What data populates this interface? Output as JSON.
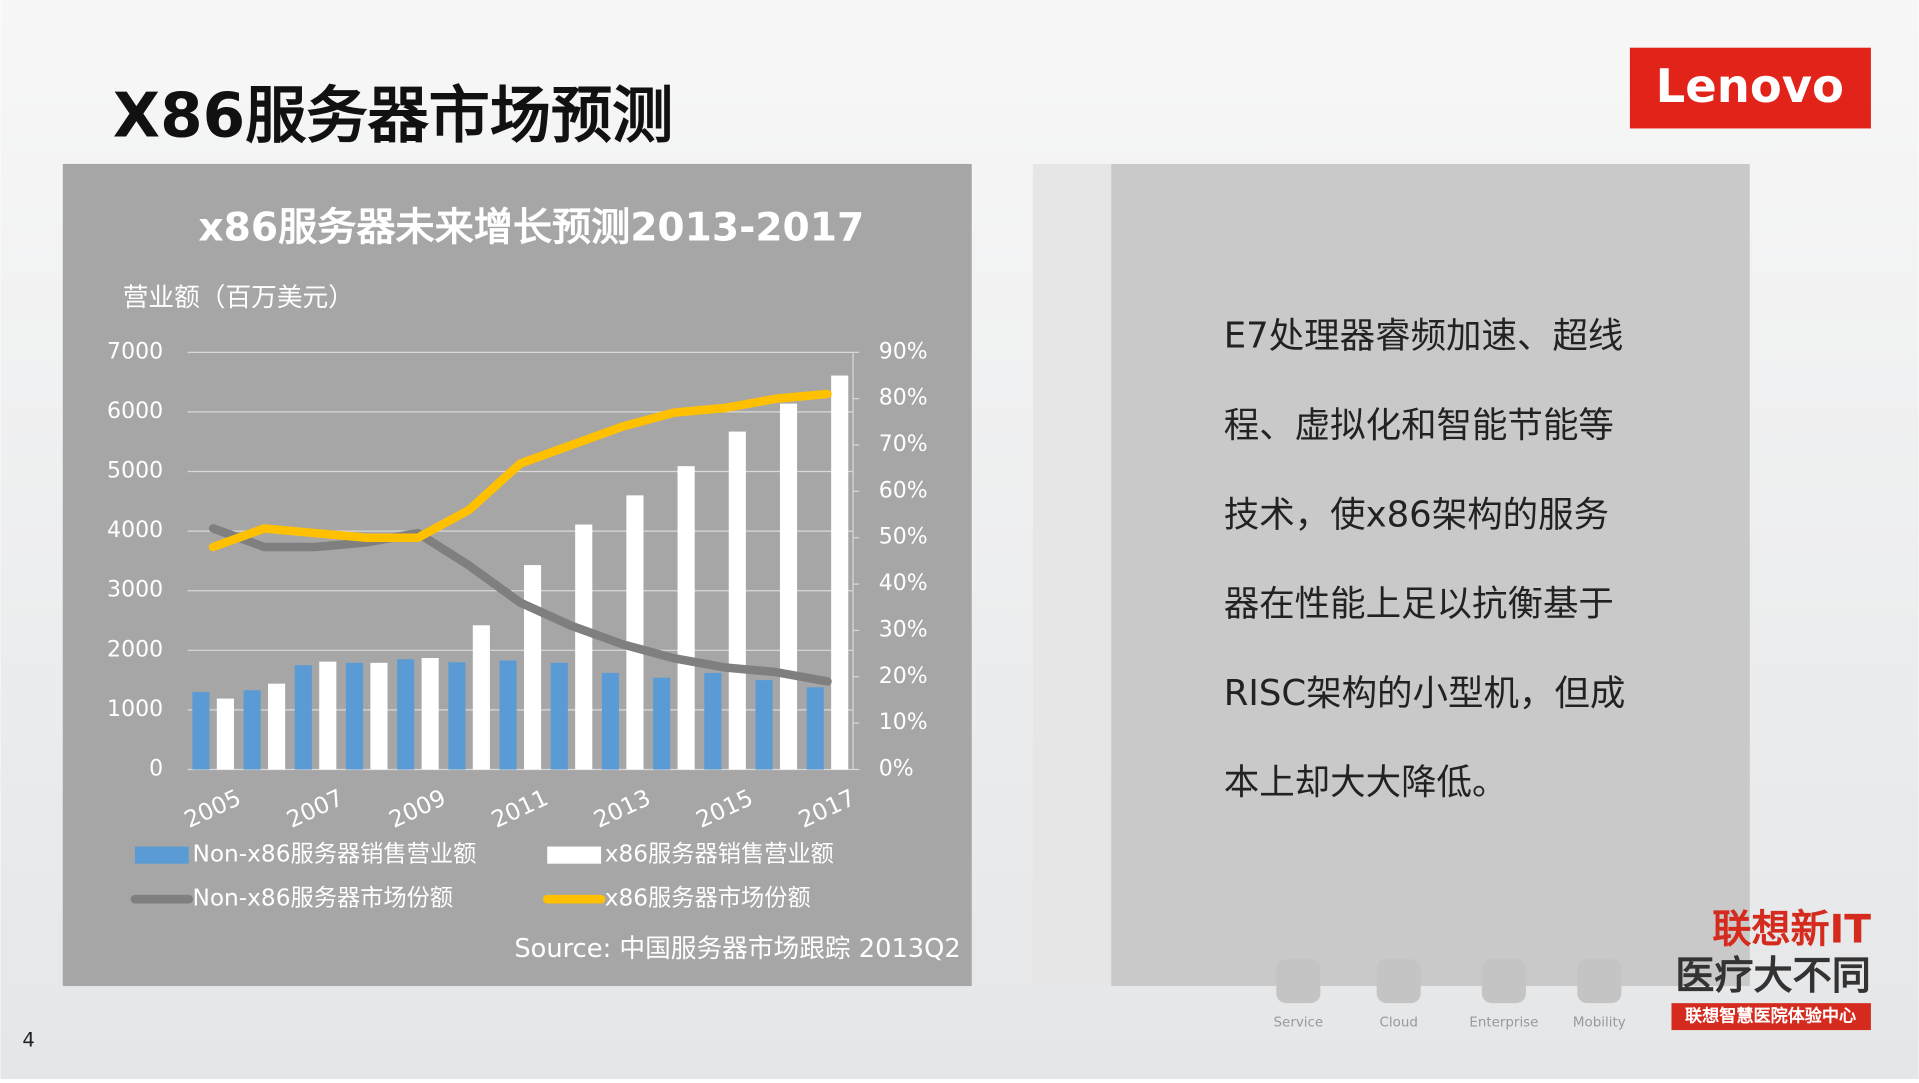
{
  "slide_title": "X86服务器市场预测",
  "logo": "Lenovo",
  "page_number": "4",
  "chart_data": {
    "type": "bar",
    "title": "x86服务器未来增长预测2013-2017",
    "y_label": "营业额（百万美元）",
    "source": "Source: 中国服务器市场跟踪 2013Q2",
    "categories": [
      "2005",
      null,
      "2007",
      null,
      "2009",
      null,
      "2011",
      null,
      "2013",
      null,
      "2015",
      null,
      "2017"
    ],
    "ylim": [
      0,
      7000
    ],
    "yticks": [
      0,
      1000,
      2000,
      3000,
      4000,
      5000,
      6000,
      7000
    ],
    "y2lim": [
      0,
      90
    ],
    "y2ticks": [
      {
        "value": 0,
        "label": "0%"
      },
      {
        "value": 10,
        "label": "10%"
      },
      {
        "value": 20,
        "label": "20%"
      },
      {
        "value": 30,
        "label": "30%"
      },
      {
        "value": 40,
        "label": "40%"
      },
      {
        "value": 50,
        "label": "50%"
      },
      {
        "value": 60,
        "label": "60%"
      },
      {
        "value": 70,
        "label": "70%"
      },
      {
        "value": 80,
        "label": "80%"
      },
      {
        "value": 90,
        "label": "90%"
      }
    ],
    "grid": true,
    "series": [
      {
        "name": "Non-x86服务器销售营业额",
        "kind": "bar",
        "color": "#5b9bd5",
        "values": [
          1300,
          1330,
          1750,
          1790,
          1850,
          1800,
          1830,
          1790,
          1620,
          1540,
          1620,
          1500,
          1380
        ]
      },
      {
        "name": "x86服务器销售营业额",
        "kind": "bar",
        "color": "#ffffff",
        "values": [
          1190,
          1440,
          1810,
          1790,
          1870,
          2420,
          3430,
          4110,
          4600,
          5090,
          5670,
          6140,
          6610
        ]
      },
      {
        "name": "Non-x86服务器市场份额",
        "kind": "line",
        "axis": "y2",
        "color": "#7f7f7f",
        "values": [
          52,
          48,
          48,
          49,
          51,
          44,
          36,
          31,
          27,
          24,
          22,
          21,
          19
        ]
      },
      {
        "name": "x86服务器市场份额",
        "kind": "line",
        "axis": "y2",
        "color": "#ffc000",
        "values": [
          48,
          52,
          51,
          50,
          50,
          56,
          66,
          70,
          74,
          77,
          78,
          80,
          81
        ]
      }
    ]
  },
  "panel": {
    "lines": [
      "E7处理器睿频加速、超线",
      "程、虚拟化和智能节能等",
      "技术，使x86架构的服务",
      "器在性能上足以抗衡基于",
      "RISC架构的小型机，但成",
      "本上却大大降低。"
    ]
  },
  "footer": {
    "icons": [
      "Service",
      "Cloud",
      "Enterprise",
      "Mobility"
    ],
    "brand": [
      "联想新IT",
      "医疗大不同",
      "联想智慧医院体验中心"
    ]
  }
}
